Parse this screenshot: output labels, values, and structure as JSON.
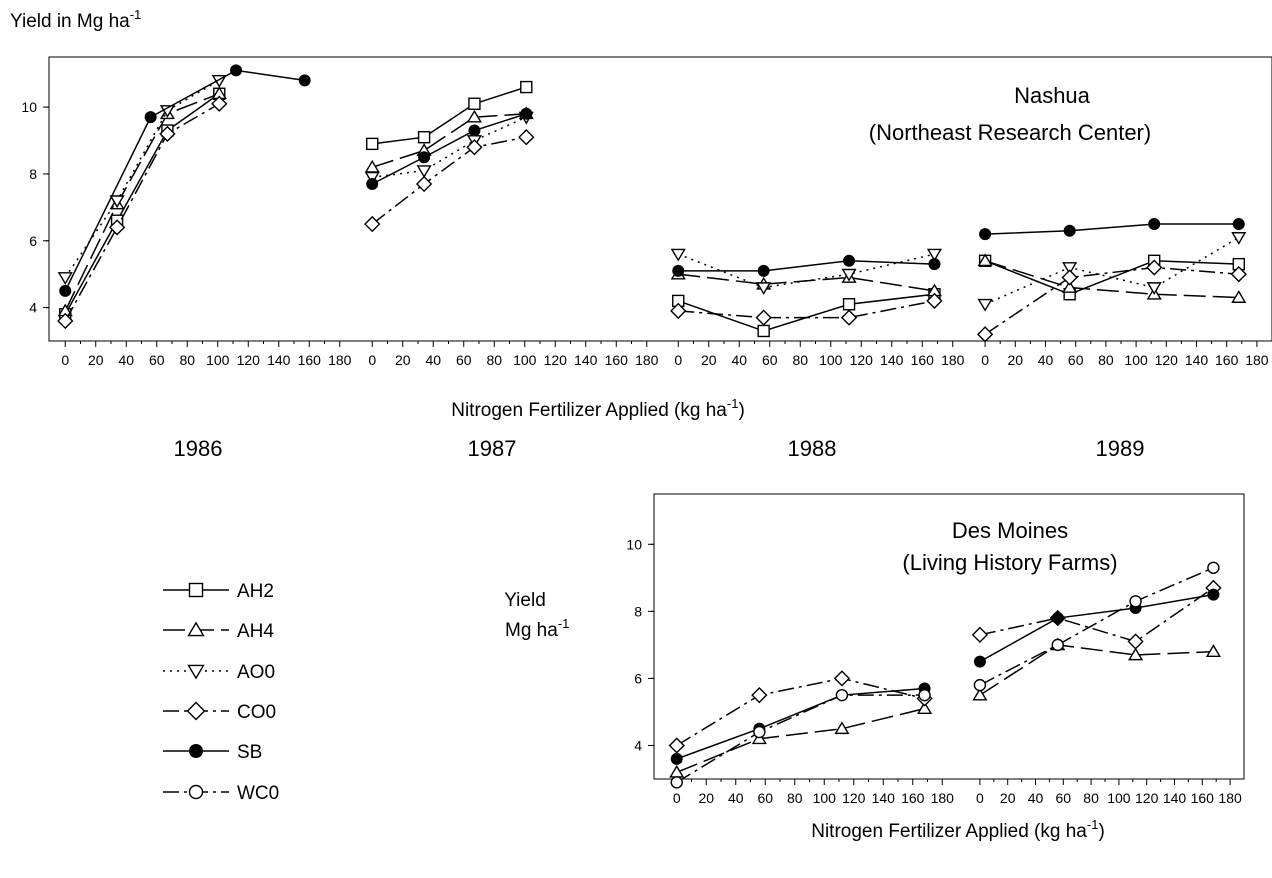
{
  "chart_data": [
    {
      "type": "line",
      "panel": "Nashua",
      "title": "Nashua",
      "subtitle": "(Northeast Research Center)",
      "ylabel": "Yield in Mg ha",
      "ylabel_sup": "-1",
      "xlabel": "Nitrogen Fertilizer Applied (kg ha",
      "xlabel_sup": "-1",
      "xlabel_end": ")",
      "ylim": [
        3,
        11.5
      ],
      "yticks": [
        4,
        6,
        8,
        10
      ],
      "xlim": [
        -10,
        190
      ],
      "xticks": [
        0,
        20,
        40,
        60,
        80,
        100,
        120,
        140,
        160,
        180
      ],
      "years": [
        {
          "year": "1986",
          "series": [
            {
              "name": "AH2",
              "x": [
                0,
                34,
                67,
                101
              ],
              "y": [
                3.8,
                6.6,
                9.3,
                10.4
              ]
            },
            {
              "name": "AH4",
              "x": [
                0,
                34,
                67,
                101
              ],
              "y": [
                3.9,
                7.1,
                9.8,
                10.4
              ]
            },
            {
              "name": "AO0",
              "x": [
                0,
                34,
                67,
                101
              ],
              "y": [
                4.9,
                7.2,
                9.9,
                10.8
              ]
            },
            {
              "name": "CO0",
              "x": [
                0,
                34,
                67,
                101
              ],
              "y": [
                3.6,
                6.4,
                9.2,
                10.1
              ]
            },
            {
              "name": "SB",
              "x": [
                0,
                56,
                112,
                157
              ],
              "y": [
                4.5,
                9.7,
                11.1,
                10.8
              ]
            }
          ]
        },
        {
          "year": "1987",
          "series": [
            {
              "name": "AH2",
              "x": [
                0,
                34,
                67,
                101
              ],
              "y": [
                8.9,
                9.1,
                10.1,
                10.6
              ]
            },
            {
              "name": "AH4",
              "x": [
                0,
                34,
                67,
                101
              ],
              "y": [
                8.2,
                8.7,
                9.7,
                9.8
              ]
            },
            {
              "name": "AO0",
              "x": [
                0,
                34,
                67,
                101
              ],
              "y": [
                7.9,
                8.1,
                9.0,
                9.7
              ]
            },
            {
              "name": "CO0",
              "x": [
                0,
                34,
                67,
                101
              ],
              "y": [
                6.5,
                7.7,
                8.8,
                9.1
              ]
            },
            {
              "name": "SB",
              "x": [
                0,
                34,
                67,
                101
              ],
              "y": [
                7.7,
                8.5,
                9.3,
                9.8
              ]
            }
          ]
        },
        {
          "year": "1988",
          "series": [
            {
              "name": "AH2",
              "x": [
                0,
                56,
                112,
                168
              ],
              "y": [
                4.2,
                3.3,
                4.1,
                4.4
              ]
            },
            {
              "name": "AH4",
              "x": [
                0,
                56,
                112,
                168
              ],
              "y": [
                5.0,
                4.7,
                4.9,
                4.5
              ]
            },
            {
              "name": "AO0",
              "x": [
                0,
                56,
                112,
                168
              ],
              "y": [
                5.6,
                4.6,
                5.0,
                5.6
              ]
            },
            {
              "name": "CO0",
              "x": [
                0,
                56,
                112,
                168
              ],
              "y": [
                3.9,
                3.7,
                3.7,
                4.2
              ]
            },
            {
              "name": "SB",
              "x": [
                0,
                56,
                112,
                168
              ],
              "y": [
                5.1,
                5.1,
                5.4,
                5.3
              ]
            }
          ]
        },
        {
          "year": "1989",
          "series": [
            {
              "name": "AH2",
              "x": [
                0,
                56,
                112,
                168
              ],
              "y": [
                5.4,
                4.4,
                5.4,
                5.3
              ]
            },
            {
              "name": "AH4",
              "x": [
                0,
                56,
                112,
                168
              ],
              "y": [
                5.4,
                4.6,
                4.4,
                4.3
              ]
            },
            {
              "name": "AO0",
              "x": [
                0,
                56,
                112,
                168
              ],
              "y": [
                4.1,
                5.2,
                4.6,
                6.1
              ]
            },
            {
              "name": "CO0",
              "x": [
                0,
                56,
                112,
                168
              ],
              "y": [
                3.2,
                4.9,
                5.2,
                5.0
              ]
            },
            {
              "name": "SB",
              "x": [
                0,
                56,
                112,
                168
              ],
              "y": [
                6.2,
                6.3,
                6.5,
                6.5
              ]
            }
          ]
        }
      ]
    },
    {
      "type": "line",
      "panel": "Des Moines",
      "title": "Des Moines",
      "subtitle": "(Living History Farms)",
      "ylabel": "Yield",
      "ylabel2": "Mg ha",
      "ylabel_sup": "-1",
      "xlabel": "Nitrogen Fertilizer Applied (kg ha",
      "xlabel_sup": "-1",
      "xlabel_end": ")",
      "ylim": [
        3,
        11.5
      ],
      "yticks": [
        4,
        6,
        8,
        10
      ],
      "xlim": [
        -10,
        190
      ],
      "xticks": [
        0,
        20,
        40,
        60,
        80,
        100,
        120,
        140,
        160,
        180
      ],
      "years": [
        {
          "year": "",
          "series": [
            {
              "name": "AH4",
              "x": [
                0,
                56,
                112,
                168
              ],
              "y": [
                3.2,
                4.2,
                4.5,
                5.1
              ]
            },
            {
              "name": "CO0",
              "x": [
                0,
                56,
                112,
                168
              ],
              "y": [
                4.0,
                5.5,
                6.0,
                5.4
              ]
            },
            {
              "name": "SB",
              "x": [
                0,
                56,
                112,
                168
              ],
              "y": [
                3.6,
                4.5,
                5.5,
                5.7
              ]
            },
            {
              "name": "WC0",
              "x": [
                0,
                56,
                112,
                168
              ],
              "y": [
                2.9,
                4.4,
                5.5,
                5.5
              ]
            }
          ]
        },
        {
          "year": "",
          "series": [
            {
              "name": "AH4",
              "x": [
                0,
                56,
                112,
                168
              ],
              "y": [
                5.5,
                7.0,
                6.7,
                6.8
              ]
            },
            {
              "name": "CO0",
              "x": [
                0,
                56,
                112,
                168
              ],
              "y": [
                7.3,
                7.8,
                7.1,
                8.7
              ]
            },
            {
              "name": "SB",
              "x": [
                0,
                56,
                112,
                168
              ],
              "y": [
                6.5,
                7.8,
                8.1,
                8.5
              ]
            },
            {
              "name": "WC0",
              "x": [
                0,
                56,
                112,
                168
              ],
              "y": [
                5.8,
                7.0,
                8.3,
                9.3
              ]
            }
          ]
        }
      ]
    }
  ],
  "legend": {
    "items": [
      {
        "name": "AH2",
        "marker": "square",
        "dash": "solid"
      },
      {
        "name": "AH4",
        "marker": "triangle-up",
        "dash": "long-dash"
      },
      {
        "name": "AO0",
        "marker": "triangle-down",
        "dash": "dotted"
      },
      {
        "name": "CO0",
        "marker": "diamond",
        "dash": "dash-dot"
      },
      {
        "name": "SB",
        "marker": "filled-circle",
        "dash": "solid"
      },
      {
        "name": "WC0",
        "marker": "circle",
        "dash": "dash-dot"
      }
    ]
  }
}
